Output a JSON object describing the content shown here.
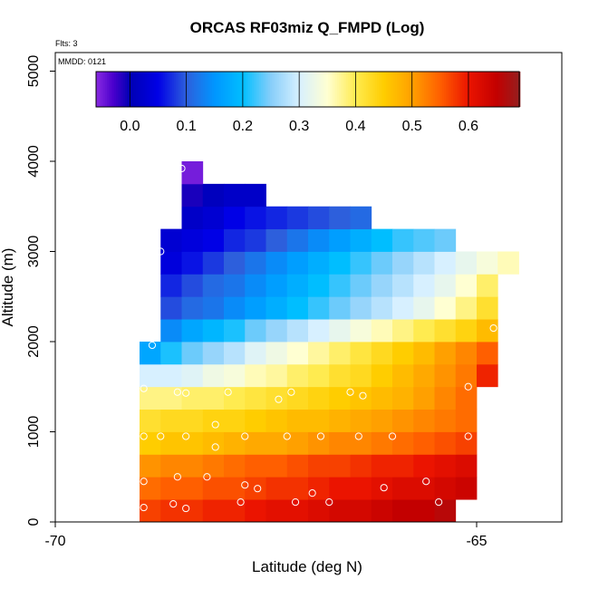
{
  "chart_data": {
    "type": "heatmap",
    "title": "ORCAS RF03miz Q_FMPD (Log)",
    "flts_label": "Flts: 3",
    "mmdd_label": "MMDD: 0121",
    "xlabel": "Latitude (deg N)",
    "ylabel": "Altitude (m)",
    "xlim": [
      -70,
      -64
    ],
    "ylim": [
      0,
      5200
    ],
    "x_ticks": [
      {
        "value": -70,
        "label": "-70"
      },
      {
        "value": -65,
        "label": "-65"
      }
    ],
    "y_ticks": [
      {
        "value": 0,
        "label": "0"
      },
      {
        "value": 1000,
        "label": "1000"
      },
      {
        "value": 2000,
        "label": "2000"
      },
      {
        "value": 3000,
        "label": "3000"
      },
      {
        "value": 4000,
        "label": "4000"
      },
      {
        "value": 5000,
        "label": "5000"
      }
    ],
    "colorbar": {
      "vmin": -0.06,
      "vmax": 0.69,
      "ticks": [
        0.0,
        0.1,
        0.2,
        0.3,
        0.4,
        0.5,
        0.6
      ],
      "tick_labels": [
        "0.0",
        "0.1",
        "0.2",
        "0.3",
        "0.4",
        "0.5",
        "0.6"
      ]
    },
    "cell_width_deg": 0.25,
    "cell_height_m": 250,
    "rows": [
      {
        "alt": 125,
        "lat_start": -69.0,
        "values": [
          0.57,
          0.58,
          0.58,
          0.59,
          0.59,
          0.6,
          0.61,
          0.61,
          0.62,
          0.63,
          0.63,
          0.64,
          0.65,
          0.65,
          0.66
        ]
      },
      {
        "alt": 375,
        "lat_start": -69.0,
        "values": [
          0.54,
          0.55,
          0.55,
          0.56,
          0.56,
          0.57,
          0.58,
          0.58,
          0.59,
          0.6,
          0.6,
          0.61,
          0.62,
          0.62,
          0.63,
          0.64
        ]
      },
      {
        "alt": 625,
        "lat_start": -69.0,
        "values": [
          0.51,
          0.52,
          0.52,
          0.53,
          0.54,
          0.55,
          0.55,
          0.56,
          0.57,
          0.57,
          0.58,
          0.59,
          0.59,
          0.6,
          0.61,
          0.62
        ]
      },
      {
        "alt": 875,
        "lat_start": -69.0,
        "values": [
          0.45,
          0.46,
          0.46,
          0.47,
          0.48,
          0.49,
          0.49,
          0.5,
          0.51,
          0.52,
          0.52,
          0.53,
          0.54,
          0.55,
          0.56,
          0.57
        ]
      },
      {
        "alt": 1125,
        "lat_start": -69.0,
        "values": [
          0.42,
          0.43,
          0.43,
          0.44,
          0.44,
          0.45,
          0.46,
          0.47,
          0.47,
          0.48,
          0.49,
          0.5,
          0.51,
          0.52,
          0.53,
          0.54
        ]
      },
      {
        "alt": 1375,
        "lat_start": -69.0,
        "values": [
          0.38,
          0.38,
          0.39,
          0.39,
          0.4,
          0.41,
          0.42,
          0.43,
          0.44,
          0.45,
          0.46,
          0.47,
          0.48,
          0.5,
          0.52,
          0.54
        ]
      },
      {
        "alt": 1625,
        "lat_start": -69.0,
        "values": [
          0.3,
          0.3,
          0.31,
          0.33,
          0.34,
          0.36,
          0.37,
          0.39,
          0.4,
          0.42,
          0.43,
          0.45,
          0.47,
          0.49,
          0.51,
          0.53,
          0.59
        ]
      },
      {
        "alt": 1875,
        "lat_start": -69.0,
        "values": [
          0.17,
          0.21,
          0.24,
          0.26,
          0.28,
          0.31,
          0.33,
          0.35,
          0.37,
          0.39,
          0.41,
          0.43,
          0.45,
          0.47,
          0.5,
          0.52,
          0.55
        ]
      },
      {
        "alt": 2125,
        "lat_start": -68.75,
        "values": [
          0.14,
          0.17,
          0.19,
          0.21,
          0.24,
          0.26,
          0.28,
          0.3,
          0.32,
          0.34,
          0.36,
          0.38,
          0.4,
          0.42,
          0.44,
          0.47
        ]
      },
      {
        "alt": 2375,
        "lat_start": -68.75,
        "values": [
          0.09,
          0.11,
          0.12,
          0.14,
          0.16,
          0.18,
          0.2,
          0.22,
          0.24,
          0.26,
          0.28,
          0.3,
          0.32,
          0.35,
          0.38,
          0.42
        ]
      },
      {
        "alt": 2625,
        "lat_start": -68.75,
        "values": [
          0.07,
          0.09,
          0.11,
          0.12,
          0.14,
          0.16,
          0.18,
          0.2,
          0.22,
          0.24,
          0.26,
          0.28,
          0.3,
          0.32,
          0.35,
          0.39
        ]
      },
      {
        "alt": 2875,
        "lat_start": -68.75,
        "values": [
          0.04,
          0.06,
          0.08,
          0.1,
          0.12,
          0.14,
          0.16,
          0.18,
          0.2,
          0.22,
          0.24,
          0.26,
          0.28,
          0.3,
          0.32,
          0.34,
          0.36
        ]
      },
      {
        "alt": 3125,
        "lat_start": -68.75,
        "values": [
          0.03,
          0.04,
          0.05,
          0.07,
          0.08,
          0.1,
          0.12,
          0.14,
          0.16,
          0.18,
          0.2,
          0.22,
          0.23,
          0.24
        ]
      },
      {
        "alt": 3375,
        "lat_start": -68.5,
        "values": [
          0.02,
          0.03,
          0.05,
          0.06,
          0.07,
          0.08,
          0.09,
          0.1,
          0.11
        ]
      },
      {
        "alt": 3625,
        "lat_start": -68.5,
        "values": [
          -0.01,
          0.01,
          0.02,
          0.02
        ]
      },
      {
        "alt": 3875,
        "lat_start": -68.5,
        "values": [
          -0.05
        ]
      }
    ],
    "sample_points": [
      {
        "lat": -68.95,
        "alt": 160
      },
      {
        "lat": -68.6,
        "alt": 200
      },
      {
        "lat": -68.45,
        "alt": 150
      },
      {
        "lat": -67.8,
        "alt": 220
      },
      {
        "lat": -67.6,
        "alt": 370
      },
      {
        "lat": -67.15,
        "alt": 220
      },
      {
        "lat": -66.95,
        "alt": 320
      },
      {
        "lat": -66.75,
        "alt": 220
      },
      {
        "lat": -66.1,
        "alt": 380
      },
      {
        "lat": -65.6,
        "alt": 450
      },
      {
        "lat": -65.45,
        "alt": 220
      },
      {
        "lat": -68.95,
        "alt": 450
      },
      {
        "lat": -68.55,
        "alt": 500
      },
      {
        "lat": -68.2,
        "alt": 500
      },
      {
        "lat": -67.75,
        "alt": 410
      },
      {
        "lat": -68.95,
        "alt": 950
      },
      {
        "lat": -68.75,
        "alt": 950
      },
      {
        "lat": -68.45,
        "alt": 950
      },
      {
        "lat": -68.1,
        "alt": 1080
      },
      {
        "lat": -68.1,
        "alt": 830
      },
      {
        "lat": -67.75,
        "alt": 950
      },
      {
        "lat": -67.25,
        "alt": 950
      },
      {
        "lat": -66.85,
        "alt": 950
      },
      {
        "lat": -66.4,
        "alt": 950
      },
      {
        "lat": -66.0,
        "alt": 950
      },
      {
        "lat": -65.1,
        "alt": 950
      },
      {
        "lat": -68.95,
        "alt": 1480
      },
      {
        "lat": -68.55,
        "alt": 1440
      },
      {
        "lat": -68.45,
        "alt": 1430
      },
      {
        "lat": -67.95,
        "alt": 1440
      },
      {
        "lat": -67.35,
        "alt": 1360
      },
      {
        "lat": -67.2,
        "alt": 1440
      },
      {
        "lat": -66.5,
        "alt": 1440
      },
      {
        "lat": -66.35,
        "alt": 1400
      },
      {
        "lat": -65.1,
        "alt": 1500
      },
      {
        "lat": -68.85,
        "alt": 1960
      },
      {
        "lat": -68.85,
        "alt": 2310
      },
      {
        "lat": -68.75,
        "alt": 3000
      },
      {
        "lat": -64.8,
        "alt": 2150
      },
      {
        "lat": -68.5,
        "alt": 3920
      }
    ]
  }
}
